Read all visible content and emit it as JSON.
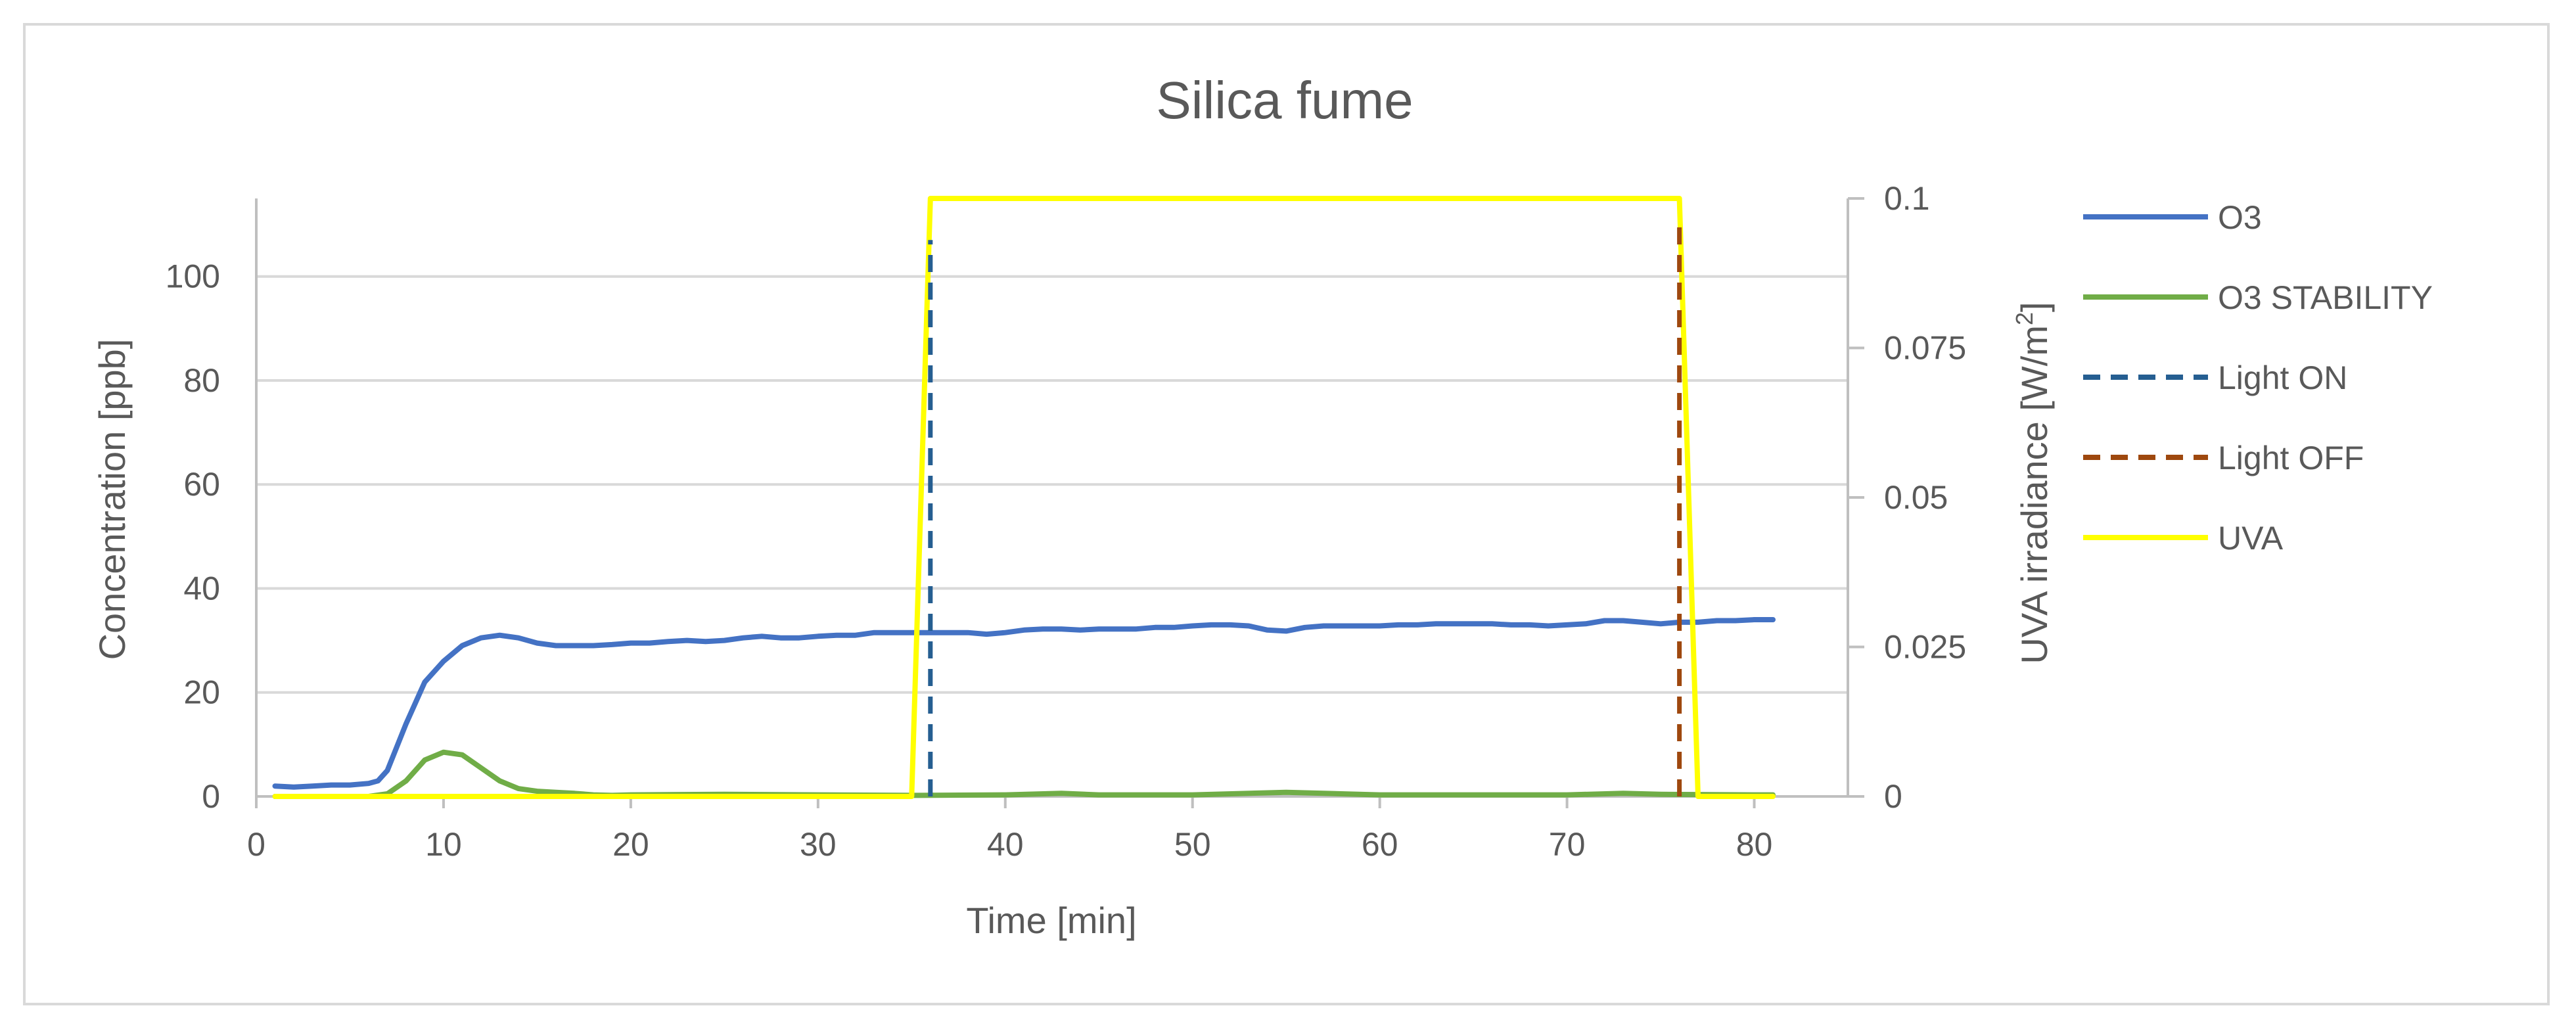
{
  "chart_data": {
    "type": "line",
    "title": "Silica fume",
    "xlabel": "Time [min]",
    "ylabel_left": "Concentration [ppb]",
    "ylabel_right_main": "UVA irradiance [W/m",
    "ylabel_right_sup": "2",
    "ylabel_right_close": "]",
    "xlim": [
      0,
      85
    ],
    "ylim_left": [
      0,
      115
    ],
    "ylim_right": [
      0,
      0.1
    ],
    "x_ticks": [
      "0",
      "10",
      "20",
      "30",
      "40",
      "50",
      "60",
      "70",
      "80"
    ],
    "y_left_ticks": [
      "0",
      "20",
      "40",
      "60",
      "80",
      "100"
    ],
    "y_right_ticks": [
      "0",
      "0.025",
      "0.05",
      "0.075",
      "0.1"
    ],
    "grid": true,
    "legend_position": "right",
    "series": [
      {
        "name": "O3",
        "color": "#4472c4",
        "dash": "solid",
        "axis": "left",
        "x": [
          1,
          2,
          3,
          4,
          5,
          6,
          6.5,
          7,
          8,
          9,
          10,
          11,
          12,
          13,
          14,
          15,
          16,
          17,
          18,
          19,
          20,
          21,
          22,
          23,
          24,
          25,
          26,
          27,
          28,
          29,
          30,
          31,
          32,
          33,
          34,
          35,
          36,
          37,
          38,
          39,
          40,
          41,
          42,
          43,
          44,
          45,
          46,
          47,
          48,
          49,
          50,
          51,
          52,
          53,
          54,
          55,
          56,
          57,
          58,
          59,
          60,
          61,
          62,
          63,
          64,
          65,
          66,
          67,
          68,
          69,
          70,
          71,
          72,
          73,
          74,
          75,
          76,
          77,
          78,
          79,
          80,
          81
        ],
        "y": [
          2,
          1.8,
          2,
          2.2,
          2.2,
          2.5,
          3,
          5,
          14,
          22,
          26,
          29,
          30.5,
          31,
          30.5,
          29.5,
          29,
          29,
          29,
          29.2,
          29.5,
          29.5,
          29.8,
          30,
          29.8,
          30,
          30.5,
          30.8,
          30.5,
          30.5,
          30.8,
          31,
          31,
          31.5,
          31.5,
          31.5,
          31.5,
          31.5,
          31.5,
          31.2,
          31.5,
          32,
          32.2,
          32.2,
          32,
          32.2,
          32.2,
          32.2,
          32.5,
          32.5,
          32.8,
          33,
          33,
          32.8,
          32,
          31.8,
          32.5,
          32.8,
          32.8,
          32.8,
          32.8,
          33,
          33,
          33.2,
          33.2,
          33.2,
          33.2,
          33,
          33,
          32.8,
          33,
          33.2,
          33.8,
          33.8,
          33.5,
          33.2,
          33.5,
          33.5,
          33.8,
          33.8,
          34,
          34
        ]
      },
      {
        "name": "O3 STABILITY",
        "color": "#70ad47",
        "dash": "solid",
        "axis": "left",
        "x": [
          1,
          2,
          3,
          4,
          5,
          6,
          7,
          8,
          9,
          10,
          11,
          12,
          13,
          14,
          15,
          16,
          17,
          18,
          19,
          20,
          25,
          30,
          35,
          40,
          43,
          45,
          50,
          55,
          60,
          65,
          70,
          73,
          75,
          80,
          81
        ],
        "y": [
          0,
          0,
          0,
          0,
          0,
          0,
          0.5,
          3,
          7,
          8.5,
          8,
          5.5,
          3,
          1.5,
          1,
          0.8,
          0.6,
          0.3,
          0.2,
          0.3,
          0.4,
          0.3,
          0.2,
          0.3,
          0.6,
          0.3,
          0.3,
          0.8,
          0.3,
          0.3,
          0.3,
          0.6,
          0.4,
          0.3,
          0.3
        ]
      },
      {
        "name": "Light ON",
        "color": "#255e91",
        "dash": "dashed",
        "axis": "left",
        "x": [
          36,
          36
        ],
        "y": [
          0,
          107
        ]
      },
      {
        "name": "Light OFF",
        "color": "#9e480e",
        "dash": "dashed",
        "axis": "left",
        "x": [
          76,
          76
        ],
        "y": [
          0,
          111
        ]
      },
      {
        "name": "UVA",
        "color": "#ffff00",
        "dash": "solid",
        "axis": "right",
        "x": [
          1,
          35,
          36,
          76,
          77,
          81
        ],
        "y": [
          0,
          0,
          0.1,
          0.1,
          0,
          0
        ]
      }
    ]
  }
}
